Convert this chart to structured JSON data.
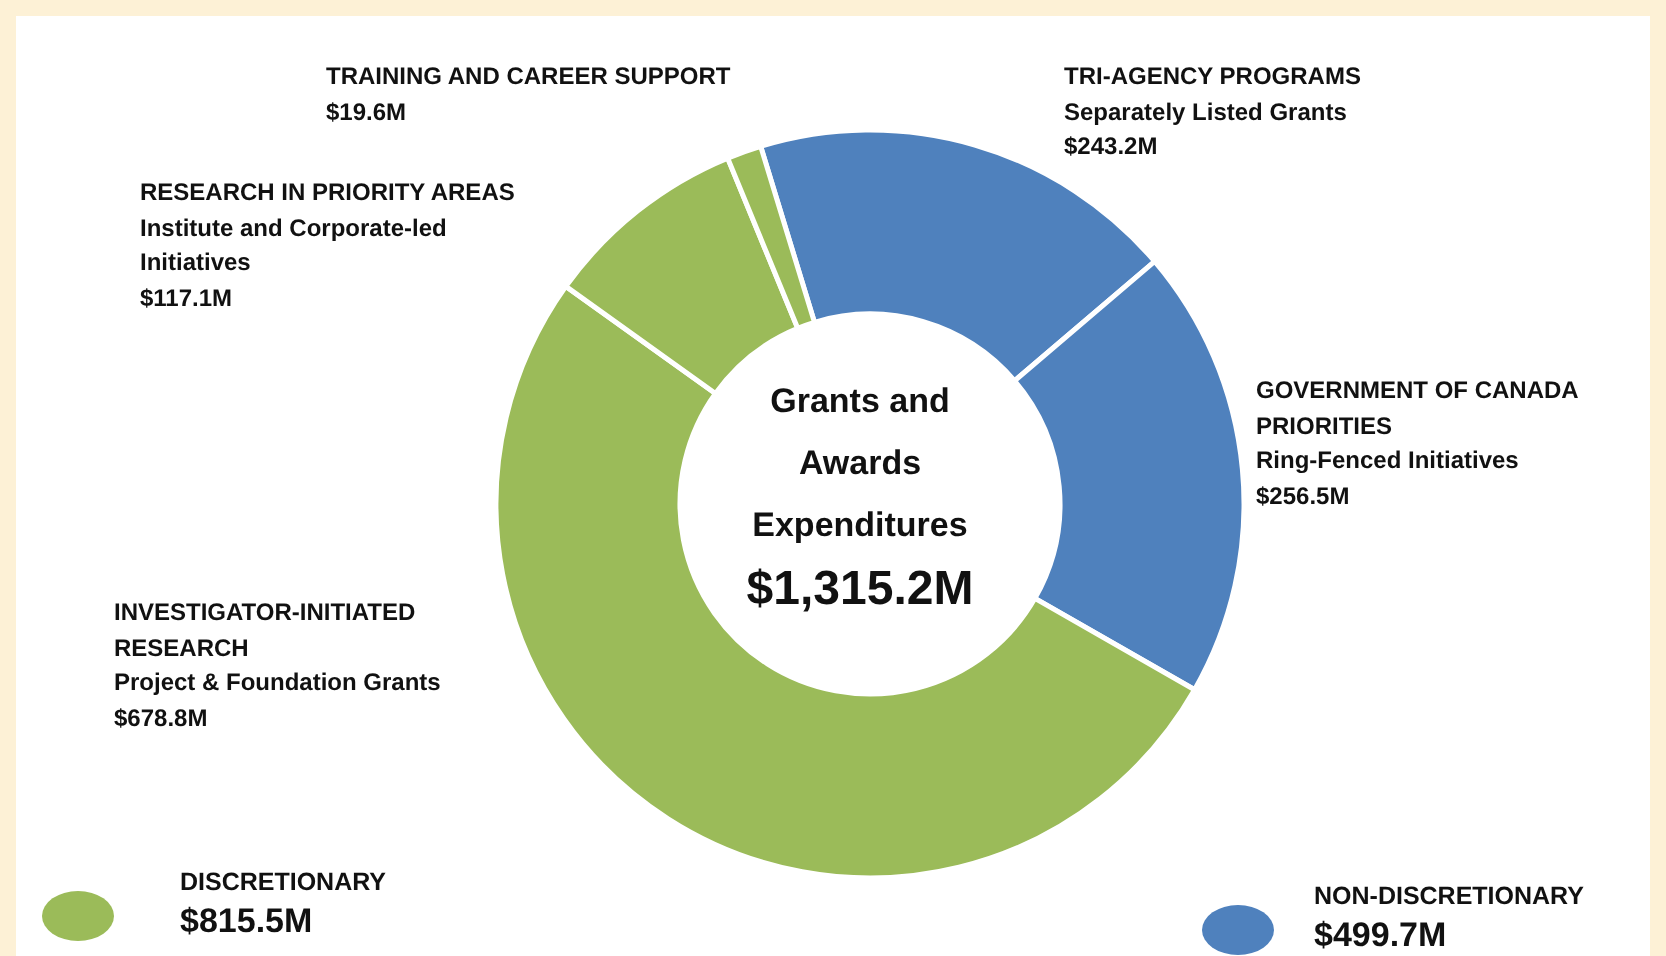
{
  "chart_data": {
    "type": "donut",
    "title": "Grants and Awards Expenditures",
    "subtitle": "$1,315.2M",
    "categories": [
      "TRI-AGENCY PROGRAMS\nSeparately Listed Grants",
      "GOVERNMENT OF CANADA PRIORITIES\nRing-Fenced Initiatives",
      "INVESTIGATOR-INITIATED RESEARCH\nProject & Foundation Grants",
      "RESEARCH IN PRIORITY AREAS\nInstitute and Corporate-led Initiatives",
      "TRAINING AND CAREER SUPPORT"
    ],
    "values": [
      243.2,
      256.5,
      678.8,
      117.1,
      19.6
    ],
    "colors": [
      "#4f81bd",
      "#4f81bd",
      "#9bbb59",
      "#9bbb59",
      "#9bbb59"
    ],
    "value_labels": [
      "$243.2M",
      "$256.5M",
      "$678.8M",
      "$117.1M",
      "$19.6M"
    ],
    "annotations": [
      "DISCRETIONARY",
      "$815.5M",
      "NON-DISCRETIONARY",
      "$499.7M"
    ]
  }
}
